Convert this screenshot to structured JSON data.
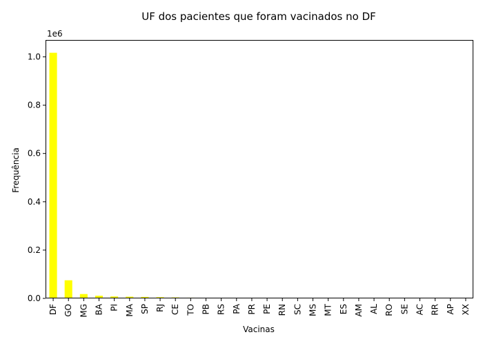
{
  "chart_data": {
    "type": "bar",
    "title": "UF dos pacientes que foram vacinados no DF",
    "xlabel": "Vacinas",
    "ylabel": "Frequência",
    "y_offset_label": "1e6",
    "ylim": [
      0,
      1.07
    ],
    "yticks": [
      "0.0",
      "0.2",
      "0.4",
      "0.6",
      "0.8",
      "1.0"
    ],
    "ytick_values": [
      0,
      0.2,
      0.4,
      0.6,
      0.8,
      1.0
    ],
    "grid": false,
    "bar_color": "#ffff00",
    "categories": [
      "DF",
      "GO",
      "MG",
      "BA",
      "PI",
      "MA",
      "SP",
      "RJ",
      "CE",
      "TO",
      "PB",
      "RS",
      "PA",
      "PR",
      "PE",
      "RN",
      "SC",
      "MS",
      "MT",
      "ES",
      "AM",
      "AL",
      "RO",
      "SE",
      "AC",
      "RR",
      "AP",
      "XX"
    ],
    "values": [
      1.017,
      0.075,
      0.018,
      0.011,
      0.008,
      0.007,
      0.006,
      0.005,
      0.004,
      0.003,
      0.0025,
      0.002,
      0.002,
      0.0018,
      0.0016,
      0.0015,
      0.0012,
      0.001,
      0.001,
      0.0008,
      0.0006,
      0.0005,
      0.0004,
      0.0003,
      0.0002,
      0.0001,
      0.0001,
      5e-05
    ]
  }
}
